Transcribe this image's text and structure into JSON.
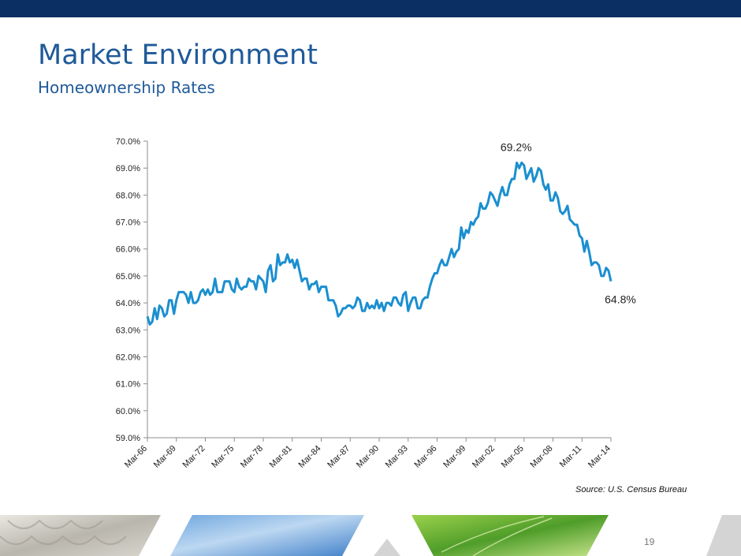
{
  "slide": {
    "title": "Market Environment",
    "subtitle": "Homeownership Rates",
    "source": "Source: U.S. Census Bureau",
    "page_number": "19",
    "colors": {
      "header": "#0b2f63",
      "title": "#1f5a99",
      "line": "#1b8fd0"
    }
  },
  "chart_data": {
    "type": "line",
    "title": "",
    "xlabel": "",
    "ylabel": "",
    "ylim": [
      59.0,
      70.0
    ],
    "y_ticks": [
      "59.0%",
      "60.0%",
      "61.0%",
      "62.0%",
      "63.0%",
      "64.0%",
      "65.0%",
      "66.0%",
      "67.0%",
      "68.0%",
      "69.0%",
      "70.0%"
    ],
    "x_ticks": [
      "Mar-66",
      "Mar-69",
      "Mar-72",
      "Mar-75",
      "Mar-78",
      "Mar-81",
      "Mar-84",
      "Mar-87",
      "Mar-90",
      "Mar-93",
      "Mar-96",
      "Mar-99",
      "Mar-02",
      "Mar-05",
      "Mar-08",
      "Mar-11",
      "Mar-14"
    ],
    "grid": false,
    "legend": "none",
    "annotations": [
      {
        "text": "69.2%",
        "x": "Mar-05",
        "y": 69.2
      },
      {
        "text": "64.8%",
        "x": "Mar-14",
        "y": 64.8
      }
    ],
    "series": [
      {
        "name": "",
        "x_start": "Mar-66",
        "frequency": "quarterly",
        "values": [
          63.5,
          63.2,
          63.3,
          63.8,
          63.4,
          63.9,
          63.8,
          63.5,
          63.6,
          64.1,
          64.1,
          63.6,
          64.1,
          64.4,
          64.4,
          64.4,
          64.3,
          64.0,
          64.4,
          64.0,
          64.0,
          64.1,
          64.4,
          64.5,
          64.3,
          64.5,
          64.3,
          64.4,
          64.9,
          64.4,
          64.4,
          64.4,
          64.8,
          64.8,
          64.8,
          64.5,
          64.4,
          64.9,
          64.6,
          64.5,
          64.6,
          64.6,
          64.9,
          64.8,
          64.8,
          64.5,
          65.0,
          64.9,
          64.8,
          64.4,
          65.2,
          65.4,
          64.8,
          64.9,
          65.8,
          65.4,
          65.5,
          65.5,
          65.8,
          65.5,
          65.6,
          65.3,
          65.6,
          65.2,
          64.8,
          64.9,
          64.9,
          64.5,
          64.7,
          64.7,
          64.8,
          64.4,
          64.6,
          64.6,
          64.6,
          64.1,
          64.1,
          64.1,
          63.9,
          63.5,
          63.6,
          63.8,
          63.8,
          63.9,
          63.9,
          63.8,
          63.9,
          64.2,
          64.1,
          63.7,
          63.7,
          64.0,
          63.8,
          63.9,
          63.8,
          64.1,
          63.8,
          64.0,
          63.7,
          64.0,
          64.0,
          63.9,
          64.2,
          64.2,
          64.0,
          63.9,
          64.3,
          64.4,
          63.7,
          64.0,
          64.2,
          64.2,
          63.8,
          63.8,
          64.1,
          64.2,
          64.2,
          64.6,
          64.9,
          65.1,
          65.1,
          65.4,
          65.6,
          65.4,
          65.4,
          65.7,
          66.0,
          65.7,
          65.9,
          66.0,
          66.8,
          66.4,
          66.7,
          66.6,
          67.0,
          66.9,
          67.1,
          67.2,
          67.7,
          67.5,
          67.5,
          67.7,
          68.1,
          68.0,
          67.8,
          67.6,
          68.0,
          68.3,
          68.0,
          68.0,
          68.4,
          68.6,
          68.6,
          69.2,
          69.0,
          69.2,
          69.1,
          68.6,
          68.8,
          69.0,
          68.5,
          68.7,
          69.0,
          68.9,
          68.4,
          68.2,
          68.4,
          67.8,
          67.8,
          68.1,
          67.9,
          67.4,
          67.3,
          67.4,
          67.6,
          67.1,
          67.0,
          66.9,
          66.9,
          66.5,
          66.4,
          65.9,
          66.3,
          65.9,
          65.4,
          65.5,
          65.5,
          65.4,
          65.0,
          65.0,
          65.3,
          65.2,
          64.8
        ]
      }
    ]
  }
}
